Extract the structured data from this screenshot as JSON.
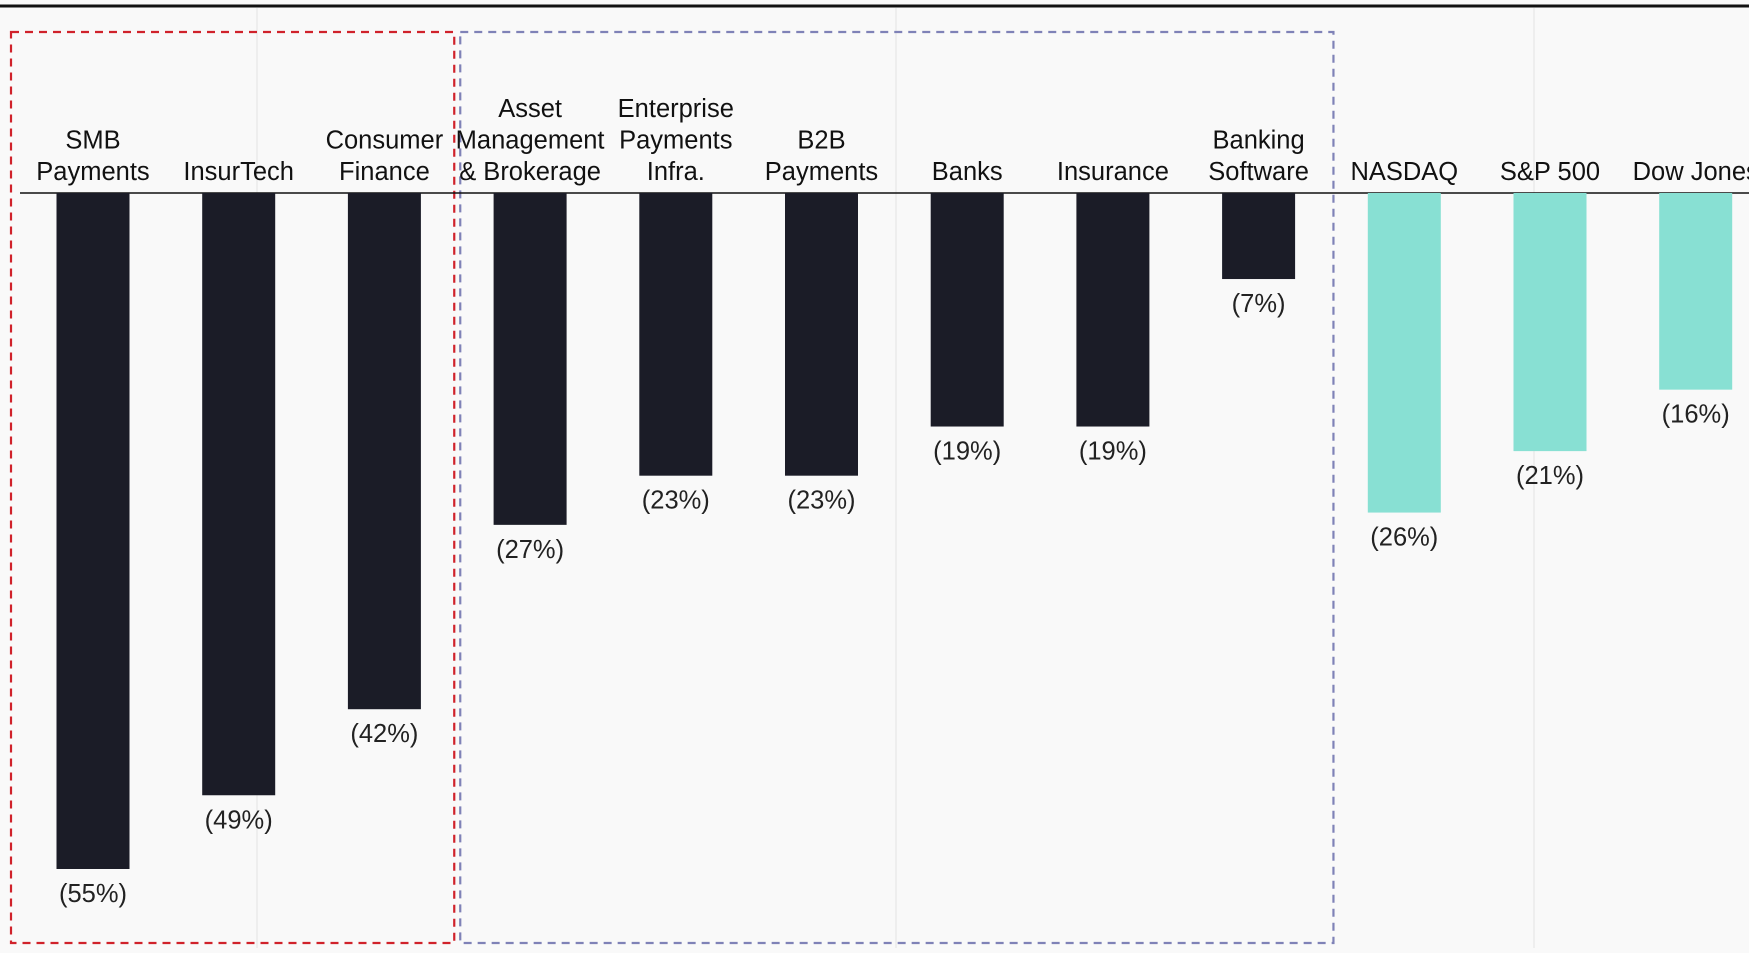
{
  "chart_data": {
    "type": "bar",
    "title": "",
    "xlabel": "",
    "ylabel": "",
    "ylim": [
      -55,
      0
    ],
    "grid": false,
    "categories": [
      [
        "SMB",
        "Payments"
      ],
      [
        "InsurTech"
      ],
      [
        "Consumer",
        "Finance"
      ],
      [
        "Asset",
        "Management",
        "& Brokerage"
      ],
      [
        "Enterprise",
        "Payments",
        "Infra."
      ],
      [
        "B2B",
        "Payments"
      ],
      [
        "Banks"
      ],
      [
        "Insurance"
      ],
      [
        "Banking",
        "Software"
      ],
      [
        "NASDAQ"
      ],
      [
        "S&P 500"
      ],
      [
        "Dow Jones"
      ]
    ],
    "values": [
      -55,
      -49,
      -42,
      -27,
      -23,
      -23,
      -19,
      -19,
      -7,
      -26,
      -21,
      -16
    ],
    "value_labels": [
      "(55%)",
      "(49%)",
      "(42%)",
      "(27%)",
      "(23%)",
      "(23%)",
      "(19%)",
      "(19%)",
      "(7%)",
      "(26%)",
      "(21%)",
      "(16%)"
    ],
    "bar_colors": [
      "#1b1c27",
      "#1b1c27",
      "#1b1c27",
      "#1b1c27",
      "#1b1c27",
      "#1b1c27",
      "#1b1c27",
      "#1b1c27",
      "#1b1c27",
      "#88e0d3",
      "#88e0d3",
      "#88e0d3"
    ],
    "groups": [
      {
        "first": 0,
        "last": 2,
        "border_color": "#d0222b"
      },
      {
        "first": 3,
        "last": 8,
        "border_color": "#7f82b7"
      }
    ]
  }
}
